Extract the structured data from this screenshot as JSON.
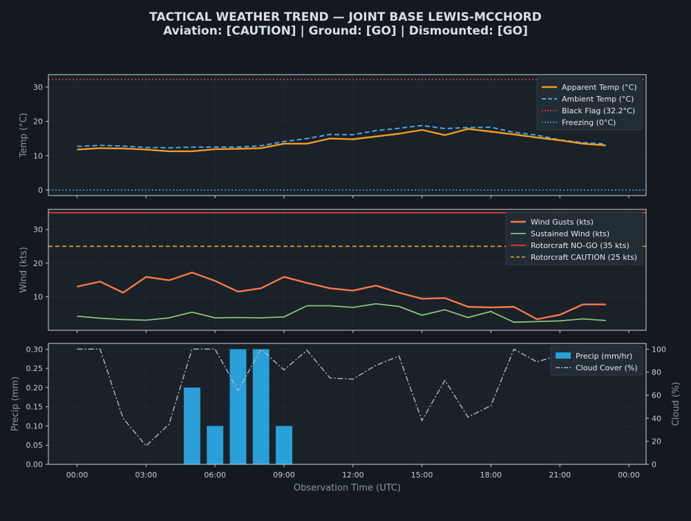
{
  "title_line1": "TACTICAL WEATHER TREND — JOINT BASE LEWIS-MCCHORD",
  "title_line2": "Aviation: [CAUTION]  |  Ground: [GO]  |  Dismounted: [GO]",
  "colors": {
    "background": "#13191f",
    "panel": "#1a2129",
    "apparent": "#f59d1e",
    "ambient": "#4aa8e8",
    "black_flag": "#e64545",
    "freezing": "#41aef0",
    "gusts": "#fa7a4a",
    "sustained": "#86c97f",
    "nogo": "#d43a3a",
    "caution": "#f5a623",
    "precip": "#2a9fd8",
    "cloud": "#aab3bd"
  },
  "chart_data": [
    {
      "type": "line",
      "ylabel": "Temp (°C)",
      "ylim": [
        -1.6,
        33.6
      ],
      "yticks": [
        0,
        10,
        20,
        30
      ],
      "x": [
        0,
        1,
        2,
        3,
        4,
        5,
        6,
        7,
        8,
        9,
        10,
        11,
        12,
        13,
        14,
        15,
        16,
        17,
        18,
        19,
        20,
        21,
        22,
        23
      ],
      "series": [
        {
          "name": "Apparent Temp (°C)",
          "values": [
            11.8,
            12.2,
            12.1,
            11.8,
            11.3,
            11.3,
            11.9,
            12.0,
            12.2,
            13.5,
            13.5,
            15.0,
            14.8,
            15.6,
            16.4,
            17.5,
            16.0,
            17.8,
            17.0,
            16.2,
            15.3,
            14.5,
            13.5,
            13.0
          ]
        },
        {
          "name": "Ambient Temp (°C)",
          "values": [
            12.7,
            13.0,
            12.8,
            12.4,
            12.3,
            12.5,
            12.5,
            12.5,
            12.9,
            14.1,
            15.0,
            16.2,
            16.1,
            17.3,
            18.0,
            18.8,
            17.9,
            18.2,
            18.3,
            16.8,
            16.0,
            14.6,
            13.8,
            13.4
          ]
        }
      ],
      "thresholds": [
        {
          "name": "Black Flag (32.2°C)",
          "value": 32.2
        },
        {
          "name": "Freezing (0°C)",
          "value": 0
        }
      ]
    },
    {
      "type": "line",
      "ylabel": "Wind (kts)",
      "ylim": [
        0,
        36
      ],
      "yticks": [
        10,
        20,
        30
      ],
      "x": [
        0,
        1,
        2,
        3,
        4,
        5,
        6,
        7,
        8,
        9,
        10,
        11,
        12,
        13,
        14,
        15,
        16,
        17,
        18,
        19,
        20,
        21,
        22,
        23
      ],
      "series": [
        {
          "name": "Wind Gusts (kts)",
          "values": [
            13.0,
            14.5,
            11.2,
            15.9,
            14.9,
            17.2,
            14.7,
            11.5,
            12.5,
            15.9,
            14.1,
            12.5,
            11.8,
            13.3,
            11.2,
            9.4,
            9.6,
            7.0,
            6.8,
            7.0,
            3.3,
            4.6,
            7.7,
            7.7
          ]
        },
        {
          "name": "Sustained Wind (kts)",
          "values": [
            4.2,
            3.6,
            3.2,
            3.0,
            3.7,
            5.4,
            3.7,
            3.8,
            3.7,
            4.0,
            7.3,
            7.3,
            6.8,
            7.9,
            7.1,
            4.5,
            6.1,
            3.8,
            5.6,
            2.4,
            2.6,
            2.8,
            3.4,
            2.9
          ]
        }
      ],
      "thresholds": [
        {
          "name": "Rotorcraft NO-GO (35 kts)",
          "value": 35
        },
        {
          "name": "Rotorcraft CAUTION (25 kts)",
          "value": 25
        }
      ]
    },
    {
      "type": "bar",
      "ylabel": "Precip (mm)",
      "y2label": "Cloud (%)",
      "xlabel": "Observation Time (UTC)",
      "ylim": [
        0,
        0.315
      ],
      "yticks": [
        0.0,
        0.05,
        0.1,
        0.15,
        0.2,
        0.25,
        0.3
      ],
      "y2lim": [
        0,
        105
      ],
      "y2ticks": [
        0,
        20,
        40,
        60,
        80,
        100
      ],
      "x": [
        0,
        1,
        2,
        3,
        4,
        5,
        6,
        7,
        8,
        9,
        10,
        11,
        12,
        13,
        14,
        15,
        16,
        17,
        18,
        19,
        20,
        21,
        22,
        23
      ],
      "x_tick_hours": [
        0,
        3,
        6,
        9,
        12,
        15,
        18,
        21,
        24
      ],
      "x_tick_labels": [
        "00:00",
        "03:00",
        "06:00",
        "09:00",
        "12:00",
        "15:00",
        "18:00",
        "21:00",
        "00:00"
      ],
      "series": [
        {
          "name": "Precip (mm/hr)",
          "values": [
            0,
            0,
            0,
            0,
            0,
            0.2,
            0.1,
            0.3,
            0.3,
            0.1,
            0,
            0,
            0,
            0,
            0,
            0,
            0,
            0,
            0,
            0,
            0,
            0,
            0,
            0
          ]
        },
        {
          "name": "Cloud Cover (%)",
          "values": [
            100,
            100,
            40,
            16,
            35,
            100,
            100,
            64,
            100,
            82,
            99,
            75,
            74,
            86,
            94,
            38,
            73,
            41,
            51,
            100,
            89,
            95,
            100,
            100
          ]
        }
      ]
    }
  ]
}
